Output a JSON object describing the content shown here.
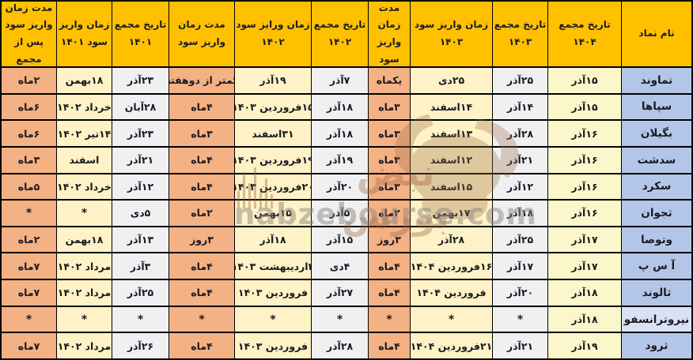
{
  "colors": {
    "header_bg": "#FFC000",
    "name_bg": "#B4C6E7",
    "name_muted_bg": "#D9E1F2",
    "assembly1404_bg": "#FBF7CB",
    "assembly_bg": "#F0F0F2",
    "payment_bg": "#FEF2C6",
    "duration_bg": "#F4B183",
    "border": "#000000",
    "text": "#1A1A24",
    "watermark_sepia": "#A06740",
    "watermark_gray": "#8C8680"
  },
  "watermark": {
    "site_text": "nabzebourse.com",
    "brand_text": "نبض بورس"
  },
  "chart_data": {
    "type": "table",
    "direction": "rtl",
    "footnote_symbol": "*",
    "columns": [
      {
        "label": "نام نماد",
        "type": "name"
      },
      {
        "label": "تاریخ مجمع ۱۴۰۴",
        "type": "assembly1404"
      },
      {
        "label": "تاریخ مجمع\n۱۴۰۳",
        "type": "assembly"
      },
      {
        "label": "زمان واریز سود\n۱۴۰۳",
        "type": "payment"
      },
      {
        "label": "مدت زمان\nواریز سود",
        "type": "duration"
      },
      {
        "label": "تاریخ مجمع\n۱۴۰۲",
        "type": "assembly"
      },
      {
        "label": "زمان ورایز سود\n۱۴۰۲",
        "type": "payment"
      },
      {
        "label": "مدت زمان\nواریز سود",
        "type": "duration"
      },
      {
        "label": "تاریخ مجمع\n۱۴۰۱",
        "type": "assembly"
      },
      {
        "label": "زمان واریز\nسود ۱۴۰۱",
        "type": "payment"
      },
      {
        "label": "مدت زمان\nواریز سود\nپس از مجمع",
        "type": "duration"
      }
    ],
    "rows": [
      {
        "cells": [
          "تماوند",
          "۱۵آذر",
          "۲۵آذر",
          "۲۵دی",
          "یکماه",
          "۷آذر",
          "۱۹آذر",
          "کمتر از دوهفته",
          "۲۳آذر",
          "۱۸بهمن",
          "۲ماه"
        ]
      },
      {
        "cells": [
          "سپاها",
          "۱۵آذر",
          "۱۴آذر",
          "۱۴اسفند",
          "۳ماه",
          "۱۸آذر",
          "۱۵فروردین ۱۴۰۳",
          "۴ماه",
          "۲۸آبان",
          "خرداد ۱۴۰۲",
          "۶ماه"
        ]
      },
      {
        "cells": [
          "بگیلان",
          "۱۶آذر",
          "۲۸آذر",
          "۱۳اسفند",
          "۳ماه",
          "۱۸آذر",
          "۳۱اسفند",
          "۳ماه",
          "۲۳آذر",
          "۱۴تیر ۱۴۰۲",
          "۶ماه"
        ]
      },
      {
        "cells": [
          "سدشت",
          "۱۶آذر",
          "۲۱آذر",
          "۱۲اسفند",
          "۳ماه",
          "۱۹آذر",
          "۱۹فروردین ۱۴۰۳",
          "۴ماه",
          "۲۱آذر",
          "اسفند",
          "۳ماه"
        ]
      },
      {
        "cells": [
          "سکرد",
          "۱۶آذر",
          "۱۲آذر",
          "۱۵اسفند",
          "۳ماه",
          "۲۰آذر",
          "۲۰فروردین ۱۴۰۳",
          "۴ماه",
          "۱۲آذر",
          "خرداد ۱۴۰۲",
          "۵ماه"
        ]
      },
      {
        "cells": [
          "ثجوان",
          "۱۶آذر",
          "۱۸آذر",
          "۱۷بهمن",
          "۲ماه",
          "۵آذر",
          "۱۵بهمن",
          "۲ماه",
          "۵دی",
          "*",
          "*"
        ]
      },
      {
        "cells": [
          "وتوصا",
          "۱۷آذر",
          "۲۵آذر",
          "۲۸آذر",
          "۳روز",
          "۱۵آذر",
          "۱۸آذر",
          "۳روز",
          "۱۳آذر",
          "۱۸بهمن",
          "۲ماه"
        ]
      },
      {
        "cells": [
          "آ س پ",
          "۱۷آذر",
          "۱۷آذر",
          "۱۶فروردین ۱۴۰۴",
          "۴ماه",
          "۴دی",
          "۳اردیبهشت ۱۴۰۳",
          "۴ماه",
          "۳آذر",
          "مرداد ۱۴۰۲",
          "۷ماه"
        ]
      },
      {
        "cells": [
          "ثالوند",
          "۱۸آذر",
          "۲۰آذر",
          "فروردین ۱۴۰۴",
          "۴ماه",
          "۲۷آذر",
          "فروردین ۱۴۰۳",
          "۴ماه",
          "۲۵آذر",
          "مرداد ۱۴۰۲",
          "۷ماه"
        ]
      },
      {
        "cells": [
          "نیروترانسفو",
          "۱۸آذر",
          "*",
          "*",
          "*",
          "*",
          "*",
          "*",
          "*",
          "*",
          "*"
        ],
        "name_muted": true
      },
      {
        "cells": [
          "ثرود",
          "۱۹آذر",
          "۲۱آذر",
          "۲۱فروردین ۱۴۰۴",
          "۴ماه",
          "۲۸آذر",
          "فروردین ۱۴۰۳",
          "۴ماه",
          "۲۶آذر",
          "مرداد ۱۴۰۲",
          "۷ماه"
        ]
      }
    ]
  }
}
